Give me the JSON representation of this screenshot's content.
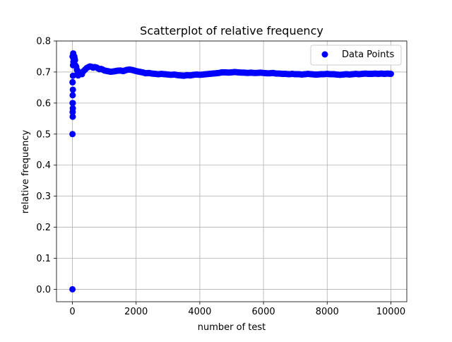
{
  "chart_data": {
    "type": "scatter",
    "title": "Scatterplot of relative frequency",
    "xlabel": "number of test",
    "ylabel": "relative frequency",
    "xlim": [
      -500,
      10500
    ],
    "ylim": [
      -0.04,
      0.8
    ],
    "xticks": [
      0,
      2000,
      4000,
      6000,
      8000,
      10000
    ],
    "xtick_labels": [
      "0",
      "2000",
      "4000",
      "6000",
      "8000",
      "10000"
    ],
    "yticks": [
      0.0,
      0.1,
      0.2,
      0.3,
      0.4,
      0.5,
      0.6,
      0.7,
      0.8
    ],
    "ytick_labels": [
      "0.0",
      "0.1",
      "0.2",
      "0.3",
      "0.4",
      "0.5",
      "0.6",
      "0.7",
      "0.8"
    ],
    "grid": true,
    "legend": {
      "position": "top-right",
      "entries": [
        "Data Points"
      ]
    },
    "series": [
      {
        "name": "Data Points",
        "color": "#0000ff",
        "marker": "circle",
        "x": [
          1,
          2,
          3,
          4,
          5,
          6,
          7,
          8,
          9,
          10,
          12,
          14,
          16,
          18,
          20,
          25,
          30,
          35,
          40,
          50,
          60,
          70,
          80,
          90,
          100,
          120,
          140,
          160,
          180,
          200,
          250,
          300,
          350,
          400,
          450,
          500,
          550,
          600,
          650,
          700,
          750,
          800,
          850,
          900,
          950,
          1000,
          1100,
          1200,
          1300,
          1400,
          1500,
          1600,
          1700,
          1800,
          1900,
          2000,
          2100,
          2200,
          2300,
          2400,
          2500,
          2600,
          2700,
          2800,
          2900,
          3000,
          3100,
          3200,
          3300,
          3400,
          3500,
          3600,
          3700,
          3800,
          3900,
          4000,
          4100,
          4200,
          4300,
          4400,
          4500,
          4600,
          4700,
          4800,
          4900,
          5000,
          5100,
          5200,
          5300,
          5400,
          5500,
          5600,
          5700,
          5800,
          5900,
          6000,
          6100,
          6200,
          6300,
          6400,
          6500,
          6600,
          6700,
          6800,
          6900,
          7000,
          7100,
          7200,
          7300,
          7400,
          7500,
          7600,
          7700,
          7800,
          7900,
          8000,
          8100,
          8200,
          8300,
          8400,
          8500,
          8600,
          8700,
          8800,
          8900,
          9000,
          9100,
          9200,
          9300,
          9400,
          9500,
          9600,
          9700,
          9800,
          9900,
          10000
        ],
        "y": [
          0.0,
          0.5,
          0.667,
          0.75,
          0.6,
          0.667,
          0.571,
          0.625,
          0.556,
          0.6,
          0.583,
          0.643,
          0.688,
          0.722,
          0.75,
          0.76,
          0.733,
          0.743,
          0.75,
          0.74,
          0.75,
          0.743,
          0.738,
          0.722,
          0.72,
          0.717,
          0.707,
          0.694,
          0.689,
          0.7,
          0.696,
          0.693,
          0.703,
          0.708,
          0.713,
          0.716,
          0.718,
          0.717,
          0.714,
          0.716,
          0.715,
          0.712,
          0.709,
          0.71,
          0.708,
          0.705,
          0.703,
          0.701,
          0.702,
          0.704,
          0.705,
          0.703,
          0.707,
          0.708,
          0.706,
          0.703,
          0.701,
          0.699,
          0.696,
          0.697,
          0.695,
          0.694,
          0.693,
          0.694,
          0.693,
          0.692,
          0.691,
          0.692,
          0.69,
          0.689,
          0.688,
          0.69,
          0.689,
          0.691,
          0.692,
          0.691,
          0.692,
          0.693,
          0.694,
          0.695,
          0.696,
          0.697,
          0.699,
          0.699,
          0.698,
          0.699,
          0.7,
          0.699,
          0.698,
          0.698,
          0.697,
          0.698,
          0.697,
          0.697,
          0.698,
          0.697,
          0.696,
          0.696,
          0.697,
          0.695,
          0.695,
          0.694,
          0.694,
          0.693,
          0.694,
          0.693,
          0.693,
          0.692,
          0.693,
          0.694,
          0.693,
          0.692,
          0.692,
          0.693,
          0.693,
          0.694,
          0.693,
          0.693,
          0.692,
          0.691,
          0.692,
          0.693,
          0.692,
          0.693,
          0.694,
          0.693,
          0.694,
          0.695,
          0.694,
          0.694,
          0.695,
          0.694,
          0.695,
          0.694,
          0.695,
          0.694
        ]
      }
    ]
  }
}
